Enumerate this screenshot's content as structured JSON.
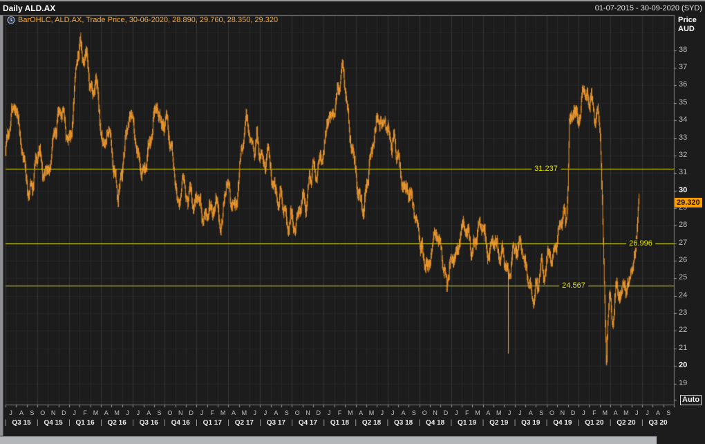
{
  "window": {
    "title": "Daily ALD.AX",
    "date_range": "01-07-2015 - 30-09-2020 (SYD)"
  },
  "legend": {
    "icon": "clock-icon",
    "text": "BarOHLC, ALD.AX, Trade Price, 30-06-2020, 28.890, 29.760, 28.350, 29.320"
  },
  "axis": {
    "price_title_1": "Price",
    "price_title_2": "AUD",
    "price_ticks": [
      38,
      37,
      36,
      35,
      34,
      33,
      32,
      31,
      30,
      29,
      28,
      27,
      26,
      25,
      24,
      23,
      22,
      21,
      20,
      19
    ],
    "price_ticks_bold": [
      30,
      20
    ],
    "auto_label": "Auto",
    "months": [
      "J",
      "A",
      "S",
      "O",
      "N",
      "D",
      "J",
      "F",
      "M",
      "A",
      "M",
      "J",
      "J",
      "A",
      "S",
      "O",
      "N",
      "D",
      "J",
      "F",
      "M",
      "A",
      "M",
      "J",
      "J",
      "A",
      "S",
      "O",
      "N",
      "D",
      "J",
      "F",
      "M",
      "A",
      "M",
      "J",
      "J",
      "A",
      "S",
      "O",
      "N",
      "D",
      "J",
      "F",
      "M",
      "A",
      "M",
      "J",
      "J",
      "A",
      "S",
      "O",
      "N",
      "D",
      "J",
      "F",
      "M",
      "A",
      "M",
      "J",
      "J",
      "A",
      "S"
    ],
    "quarters": [
      "Q3 15",
      "Q4 15",
      "Q1 16",
      "Q2 16",
      "Q3 16",
      "Q4 16",
      "Q1 17",
      "Q2 17",
      "Q3 17",
      "Q4 17",
      "Q1 18",
      "Q2 18",
      "Q3 18",
      "Q4 18",
      "Q1 19",
      "Q2 19",
      "Q3 19",
      "Q4 19",
      "Q1 20",
      "Q2 20",
      "Q3 20"
    ]
  },
  "chart_data": {
    "type": "ohlc-bar",
    "title": "Daily ALD.AX",
    "instrument": "ALD.AX",
    "field": "Trade Price",
    "interval": "Daily",
    "currency": "AUD",
    "x_range": [
      "Jul 2015",
      "Sep 2020"
    ],
    "months_total": 63,
    "data_end_month": 59.75,
    "ylim": [
      17.8,
      40.0
    ],
    "last_bar": {
      "date": "30-06-2020",
      "open": 28.89,
      "high": 29.76,
      "low": 28.35,
      "close": 29.32
    },
    "last_price_label": "29.320",
    "support_lines": [
      {
        "value": 31.237,
        "label": "31.237"
      },
      {
        "value": 26.996,
        "label": "26.996"
      },
      {
        "value": 24.567,
        "label": "24.567"
      }
    ],
    "spikes": [
      {
        "m": 47.4,
        "low": 20.7
      }
    ],
    "path_months_price": [
      [
        0,
        32.3
      ],
      [
        0.45,
        33.9
      ],
      [
        0.9,
        35.1
      ],
      [
        1.3,
        33.4
      ],
      [
        1.8,
        31.4
      ],
      [
        2.2,
        29.7
      ],
      [
        2.6,
        30.6
      ],
      [
        3.1,
        32.4
      ],
      [
        3.5,
        31.1
      ],
      [
        4,
        31
      ],
      [
        4.6,
        33.2
      ],
      [
        5.2,
        34.8
      ],
      [
        5.6,
        33.9
      ],
      [
        5.9,
        32.6
      ],
      [
        6.2,
        33.4
      ],
      [
        6.6,
        36.6
      ],
      [
        7,
        38.8
      ],
      [
        7.25,
        37.2
      ],
      [
        7.5,
        38.1
      ],
      [
        7.8,
        36.8
      ],
      [
        8.2,
        35.3
      ],
      [
        8.5,
        36.5
      ],
      [
        8.9,
        34
      ],
      [
        9.3,
        32.2
      ],
      [
        9.6,
        33.7
      ],
      [
        9.9,
        32.9
      ],
      [
        10.2,
        31.1
      ],
      [
        10.6,
        29.8
      ],
      [
        10.9,
        30.7
      ],
      [
        11.2,
        32.4
      ],
      [
        11.7,
        34.6
      ],
      [
        12.1,
        33.5
      ],
      [
        12.5,
        31.9
      ],
      [
        13,
        30.9
      ],
      [
        13.4,
        32.1
      ],
      [
        13.9,
        33.8
      ],
      [
        14.3,
        35
      ],
      [
        14.7,
        33.5
      ],
      [
        15.1,
        34.3
      ],
      [
        15.5,
        32.8
      ],
      [
        15.9,
        31.2
      ],
      [
        16.2,
        29.2
      ],
      [
        16.5,
        29.9
      ],
      [
        16.8,
        30.6
      ],
      [
        17.2,
        29.4
      ],
      [
        17.5,
        30.1
      ],
      [
        17.8,
        29
      ],
      [
        18.1,
        29.8
      ],
      [
        18.5,
        28.7
      ],
      [
        18.9,
        28.3
      ],
      [
        19.2,
        29.3
      ],
      [
        19.5,
        28.4
      ],
      [
        19.8,
        29.7
      ],
      [
        20.2,
        27.9
      ],
      [
        20.5,
        28.6
      ],
      [
        20.8,
        30.6
      ],
      [
        21.1,
        29.9
      ],
      [
        21.5,
        28.9
      ],
      [
        21.8,
        29.5
      ],
      [
        22.1,
        31.4
      ],
      [
        22.4,
        33
      ],
      [
        22.7,
        34.1
      ],
      [
        23,
        33.1
      ],
      [
        23.4,
        32.3
      ],
      [
        23.7,
        33
      ],
      [
        24,
        32.1
      ],
      [
        24.4,
        31.4
      ],
      [
        24.7,
        32.2
      ],
      [
        25,
        31.2
      ],
      [
        25.3,
        30.2
      ],
      [
        25.7,
        29.3
      ],
      [
        26,
        29.9
      ],
      [
        26.3,
        28.7
      ],
      [
        26.7,
        28
      ],
      [
        27,
        28.6
      ],
      [
        27.3,
        27.8
      ],
      [
        27.7,
        29
      ],
      [
        28,
        29.6
      ],
      [
        28.3,
        29.1
      ],
      [
        28.6,
        30.5
      ],
      [
        29,
        31.4
      ],
      [
        29.3,
        30.8
      ],
      [
        29.6,
        31.7
      ],
      [
        29.9,
        32.1
      ],
      [
        30.2,
        33.2
      ],
      [
        30.5,
        34.6
      ],
      [
        30.8,
        34
      ],
      [
        31.2,
        35.2
      ],
      [
        31.5,
        36.2
      ],
      [
        31.8,
        37.1
      ],
      [
        32,
        36
      ],
      [
        32.2,
        34.6
      ],
      [
        32.4,
        33.4
      ],
      [
        32.7,
        32.4
      ],
      [
        32.9,
        31.4
      ],
      [
        33.2,
        30.2
      ],
      [
        33.5,
        29.3
      ],
      [
        33.7,
        28.9
      ],
      [
        34,
        30
      ],
      [
        34.2,
        31.2
      ],
      [
        34.5,
        32.2
      ],
      [
        34.7,
        33.2
      ],
      [
        35,
        33.8
      ],
      [
        35.3,
        34.2
      ],
      [
        35.6,
        33.4
      ],
      [
        35.8,
        34
      ],
      [
        36.1,
        33.2
      ],
      [
        36.4,
        32.6
      ],
      [
        36.6,
        33
      ],
      [
        36.9,
        32
      ],
      [
        37.2,
        31.2
      ],
      [
        37.4,
        30.4
      ],
      [
        37.7,
        29.8
      ],
      [
        37.9,
        30.4
      ],
      [
        38.2,
        29.6
      ],
      [
        38.5,
        28.9
      ],
      [
        38.7,
        28.3
      ],
      [
        39,
        27.4
      ],
      [
        39.2,
        26.6
      ],
      [
        39.5,
        26
      ],
      [
        39.8,
        25.4
      ],
      [
        40,
        26.2
      ],
      [
        40.3,
        27
      ],
      [
        40.6,
        27.8
      ],
      [
        40.8,
        27.2
      ],
      [
        41.1,
        26.4
      ],
      [
        41.4,
        25.2
      ],
      [
        41.6,
        24.7
      ],
      [
        41.9,
        25.8
      ],
      [
        42.2,
        26.4
      ],
      [
        42.4,
        26
      ],
      [
        42.7,
        27
      ],
      [
        43,
        27.7
      ],
      [
        43.2,
        28.2
      ],
      [
        43.5,
        27.6
      ],
      [
        43.8,
        27
      ],
      [
        44,
        26.5
      ],
      [
        44.3,
        27.1
      ],
      [
        44.5,
        27.8
      ],
      [
        44.8,
        28.3
      ],
      [
        45.1,
        27.6
      ],
      [
        45.3,
        26.9
      ],
      [
        45.6,
        26.3
      ],
      [
        45.8,
        26.9
      ],
      [
        46.1,
        27.4
      ],
      [
        46.3,
        26.7
      ],
      [
        46.6,
        26.1
      ],
      [
        46.8,
        26.6
      ],
      [
        47.1,
        25.9
      ],
      [
        47.35,
        25.2
      ],
      [
        47.6,
        25.6
      ],
      [
        47.8,
        26.3
      ],
      [
        48,
        26.9
      ],
      [
        48.3,
        26.5
      ],
      [
        48.5,
        27.1
      ],
      [
        48.8,
        26.3
      ],
      [
        49,
        25.6
      ],
      [
        49.3,
        24.9
      ],
      [
        49.5,
        24.3
      ],
      [
        49.8,
        23.8
      ],
      [
        50,
        24.5
      ],
      [
        50.3,
        25.1
      ],
      [
        50.5,
        25.7
      ],
      [
        50.8,
        25.2
      ],
      [
        51,
        25.9
      ],
      [
        51.3,
        26.4
      ],
      [
        51.5,
        26.1
      ],
      [
        51.8,
        26.7
      ],
      [
        52,
        27.3
      ],
      [
        52.2,
        27.9
      ],
      [
        52.4,
        28.4
      ],
      [
        52.6,
        28.7
      ],
      [
        52.8,
        28.3
      ],
      [
        53,
        30.2
      ],
      [
        53.15,
        33.6
      ],
      [
        53.35,
        34.3
      ],
      [
        53.55,
        34.8
      ],
      [
        53.75,
        34.2
      ],
      [
        53.95,
        33.9
      ],
      [
        54.15,
        34.5
      ],
      [
        54.35,
        35.2
      ],
      [
        54.55,
        35.9
      ],
      [
        54.75,
        35.5
      ],
      [
        54.95,
        35
      ],
      [
        55.15,
        35.6
      ],
      [
        55.35,
        34.7
      ],
      [
        55.55,
        34.1
      ],
      [
        55.75,
        34.6
      ],
      [
        55.95,
        33.8
      ],
      [
        56.1,
        32.6
      ],
      [
        56.25,
        29.5
      ],
      [
        56.4,
        25.5
      ],
      [
        56.55,
        21.5
      ],
      [
        56.65,
        19.8
      ],
      [
        56.75,
        22.8
      ],
      [
        56.9,
        24.2
      ],
      [
        57.05,
        23.3
      ],
      [
        57.2,
        22.3
      ],
      [
        57.35,
        23.2
      ],
      [
        57.5,
        24.1
      ],
      [
        57.65,
        24.8
      ],
      [
        57.8,
        24.2
      ],
      [
        57.95,
        23.6
      ],
      [
        58.1,
        24.3
      ],
      [
        58.25,
        25
      ],
      [
        58.4,
        24.4
      ],
      [
        58.55,
        23.9
      ],
      [
        58.7,
        24.6
      ],
      [
        58.85,
        25.2
      ],
      [
        59,
        25.8
      ],
      [
        59.15,
        25.3
      ],
      [
        59.3,
        26.2
      ],
      [
        59.4,
        26.9
      ],
      [
        59.5,
        27.7
      ],
      [
        59.6,
        28.5
      ],
      [
        59.68,
        29.2
      ],
      [
        59.75,
        29.4
      ]
    ],
    "colors": {
      "bar": "#ffa02b",
      "bar_bright": "#ffb554",
      "support_line": "#e6e600",
      "badge_bg": "#ff9e00",
      "background": "#1c1c1c",
      "grid": "#272727",
      "grid_quarter": "#343434",
      "frame": "#7d7d7d"
    }
  }
}
